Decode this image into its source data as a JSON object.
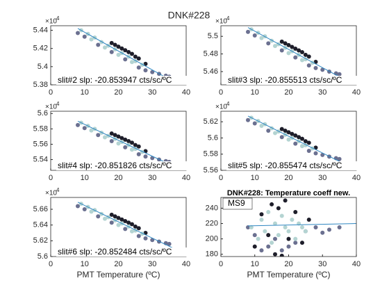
{
  "figure_title": "DNK#228",
  "chart_data": [
    {
      "type": "scatter",
      "annotation": "slit#2 slp: -20.853947 cts/sc/ºC",
      "xlim": [
        0,
        40
      ],
      "xticks": [
        0,
        10,
        20,
        30,
        40
      ],
      "ylim": [
        5.38,
        5.445
      ],
      "yticks": [
        5.38,
        5.4,
        5.42,
        5.44
      ],
      "y_multiplier_base": "×10",
      "y_multiplier_exp": "4",
      "series": [
        {
          "color": "#1e1e2a",
          "x": [
            18,
            20,
            22,
            24,
            26,
            28,
            25,
            23,
            21,
            19
          ],
          "y": [
            5.426,
            5.422,
            5.418,
            5.414,
            5.409,
            5.403,
            5.411,
            5.416,
            5.42,
            5.424
          ]
        },
        {
          "color": "#6b7090",
          "x": [
            8,
            10,
            14,
            18,
            22,
            26,
            28,
            30,
            32,
            34,
            35
          ],
          "y": [
            5.437,
            5.433,
            5.424,
            5.416,
            5.408,
            5.399,
            5.396,
            5.394,
            5.392,
            5.39,
            5.389
          ]
        },
        {
          "color": "#b4d4d2",
          "x": [
            9,
            11,
            13,
            15,
            17,
            19,
            21,
            23,
            25,
            27,
            12,
            16,
            20,
            24
          ],
          "y": [
            5.44,
            5.436,
            5.432,
            5.427,
            5.423,
            5.419,
            5.415,
            5.411,
            5.406,
            5.402,
            5.43,
            5.421,
            5.413,
            5.405
          ]
        }
      ],
      "fit": {
        "color": "#2e86c1",
        "x": [
          8,
          36
        ],
        "y": [
          5.442,
          5.384
        ]
      }
    },
    {
      "type": "scatter",
      "annotation": "slit#3 slp: -20.855513 cts/sc/ºC",
      "xlim": [
        0,
        40
      ],
      "xticks": [
        0,
        10,
        20,
        30,
        40
      ],
      "ylim": [
        5.445,
        5.512
      ],
      "yticks": [
        5.46,
        5.48,
        5.5
      ],
      "y_multiplier_base": "×10",
      "y_multiplier_exp": "4",
      "series": [
        {
          "color": "#1e1e2a",
          "x": [
            18,
            20,
            22,
            24,
            26,
            28,
            25,
            23,
            21,
            19
          ],
          "y": [
            5.494,
            5.49,
            5.486,
            5.482,
            5.477,
            5.471,
            5.479,
            5.484,
            5.488,
            5.492
          ]
        },
        {
          "color": "#6b7090",
          "x": [
            8,
            10,
            14,
            18,
            22,
            26,
            28,
            30,
            32,
            34,
            35
          ],
          "y": [
            5.505,
            5.501,
            5.492,
            5.484,
            5.476,
            5.467,
            5.464,
            5.462,
            5.46,
            5.458,
            5.457
          ]
        },
        {
          "color": "#b4d4d2",
          "x": [
            9,
            11,
            13,
            15,
            17,
            19,
            21,
            23,
            25,
            27,
            12,
            16,
            20,
            24
          ],
          "y": [
            5.508,
            5.504,
            5.5,
            5.495,
            5.491,
            5.487,
            5.483,
            5.479,
            5.474,
            5.47,
            5.498,
            5.489,
            5.481,
            5.473
          ]
        }
      ],
      "fit": {
        "color": "#2e86c1",
        "x": [
          8,
          36
        ],
        "y": [
          5.51,
          5.452
        ]
      }
    },
    {
      "type": "scatter",
      "annotation": "slit#4 slp: -20.851826 cts/sc/ºC",
      "xlim": [
        0,
        40
      ],
      "xticks": [
        0,
        10,
        20,
        30,
        40
      ],
      "ylim": [
        5.526,
        5.603
      ],
      "yticks": [
        5.54,
        5.56,
        5.58,
        5.6
      ],
      "y_multiplier_base": "×10",
      "y_multiplier_exp": "4",
      "series": [
        {
          "color": "#1e1e2a",
          "x": [
            18,
            20,
            22,
            24,
            26,
            28,
            25,
            23,
            21,
            19
          ],
          "y": [
            5.574,
            5.57,
            5.566,
            5.562,
            5.557,
            5.551,
            5.559,
            5.564,
            5.568,
            5.572
          ]
        },
        {
          "color": "#6b7090",
          "x": [
            8,
            10,
            14,
            18,
            22,
            26,
            28,
            30,
            32,
            34,
            35
          ],
          "y": [
            5.585,
            5.581,
            5.572,
            5.564,
            5.556,
            5.547,
            5.544,
            5.542,
            5.54,
            5.538,
            5.537
          ]
        },
        {
          "color": "#b4d4d2",
          "x": [
            9,
            11,
            13,
            15,
            17,
            19,
            21,
            23,
            25,
            27,
            12,
            16,
            20,
            24
          ],
          "y": [
            5.588,
            5.584,
            5.58,
            5.575,
            5.571,
            5.567,
            5.563,
            5.559,
            5.554,
            5.55,
            5.578,
            5.569,
            5.561,
            5.553
          ]
        }
      ],
      "fit": {
        "color": "#2e86c1",
        "x": [
          8,
          36
        ],
        "y": [
          5.59,
          5.532
        ]
      }
    },
    {
      "type": "scatter",
      "annotation": "slit#5 slp: -20.855474 cts/sc/ºC",
      "xlim": [
        0,
        40
      ],
      "xticks": [
        0,
        10,
        20,
        30,
        40
      ],
      "ylim": [
        5.56,
        5.633
      ],
      "yticks": [
        5.56,
        5.58,
        5.6,
        5.62
      ],
      "y_multiplier_base": "×10",
      "y_multiplier_exp": "4",
      "series": [
        {
          "color": "#1e1e2a",
          "x": [
            18,
            20,
            22,
            24,
            26,
            28,
            25,
            23,
            21,
            19
          ],
          "y": [
            5.611,
            5.607,
            5.603,
            5.599,
            5.594,
            5.588,
            5.596,
            5.601,
            5.605,
            5.609
          ]
        },
        {
          "color": "#6b7090",
          "x": [
            8,
            10,
            14,
            18,
            22,
            26,
            28,
            30,
            32,
            34,
            35
          ],
          "y": [
            5.622,
            5.618,
            5.609,
            5.601,
            5.593,
            5.584,
            5.581,
            5.579,
            5.577,
            5.575,
            5.574
          ]
        },
        {
          "color": "#b4d4d2",
          "x": [
            9,
            11,
            13,
            15,
            17,
            19,
            21,
            23,
            25,
            27,
            12,
            16,
            20,
            24
          ],
          "y": [
            5.625,
            5.621,
            5.617,
            5.612,
            5.608,
            5.604,
            5.6,
            5.596,
            5.591,
            5.587,
            5.615,
            5.606,
            5.598,
            5.59
          ]
        }
      ],
      "fit": {
        "color": "#2e86c1",
        "x": [
          8,
          36
        ],
        "y": [
          5.627,
          5.569
        ]
      }
    },
    {
      "type": "scatter",
      "annotation": "slit#6 slp: -20.852484 cts/sc/ºC",
      "x_label": "PMT Temperature (ºC)",
      "xlim": [
        0,
        40
      ],
      "xticks": [
        0,
        10,
        20,
        30,
        40
      ],
      "ylim": [
        5.6,
        5.675
      ],
      "yticks": [
        5.6,
        5.62,
        5.64,
        5.66
      ],
      "y_multiplier_base": "×10",
      "y_multiplier_exp": "4",
      "series": [
        {
          "color": "#1e1e2a",
          "x": [
            18,
            20,
            22,
            24,
            26,
            28,
            25,
            23,
            21,
            19
          ],
          "y": [
            5.653,
            5.649,
            5.645,
            5.641,
            5.636,
            5.63,
            5.638,
            5.643,
            5.647,
            5.651
          ]
        },
        {
          "color": "#6b7090",
          "x": [
            8,
            10,
            14,
            18,
            22,
            26,
            28,
            30,
            32,
            34,
            35
          ],
          "y": [
            5.664,
            5.66,
            5.651,
            5.643,
            5.635,
            5.626,
            5.623,
            5.621,
            5.619,
            5.617,
            5.616
          ]
        },
        {
          "color": "#b4d4d2",
          "x": [
            9,
            11,
            13,
            15,
            17,
            19,
            21,
            23,
            25,
            27,
            12,
            16,
            20,
            24
          ],
          "y": [
            5.667,
            5.663,
            5.659,
            5.654,
            5.65,
            5.646,
            5.642,
            5.638,
            5.633,
            5.629,
            5.657,
            5.648,
            5.64,
            5.632
          ]
        }
      ],
      "fit": {
        "color": "#2e86c1",
        "x": [
          8,
          36
        ],
        "y": [
          5.669,
          5.611
        ]
      }
    },
    {
      "type": "scatter",
      "title": "DNK#228: Temperature coeff new.",
      "x_label": "PMT Temperature (ºC)",
      "xlim": [
        0,
        40
      ],
      "xticks": [
        0,
        10,
        20,
        30,
        40
      ],
      "ylim": [
        177,
        254
      ],
      "yticks": [
        180,
        200,
        220,
        240
      ],
      "series": [
        {
          "color": "#6b7090",
          "x": [
            8,
            10,
            12,
            14,
            16,
            18,
            20,
            22,
            25,
            28,
            30,
            32,
            35
          ],
          "y": [
            215,
            205,
            185,
            190,
            200,
            185,
            190,
            195,
            210,
            215,
            208,
            212,
            215
          ]
        },
        {
          "color": "#1e1e2a",
          "x": [
            10,
            12,
            14,
            15,
            16,
            17,
            18,
            19,
            20,
            22,
            24,
            26
          ],
          "y": [
            190,
            232,
            205,
            245,
            180,
            240,
            178,
            250,
            200,
            235,
            195,
            225
          ]
        },
        {
          "color": "#b4d4d2",
          "x": [
            9,
            11,
            12,
            13,
            14,
            15,
            16,
            17,
            18,
            19,
            20,
            21,
            22,
            23,
            24,
            25
          ],
          "y": [
            215,
            200,
            225,
            210,
            235,
            195,
            220,
            205,
            230,
            215,
            210,
            225,
            200,
            220,
            215,
            210
          ]
        }
      ],
      "fit": {
        "name": "MS9",
        "color": "#2e86c1",
        "x": [
          8,
          40
        ],
        "y": [
          217,
          220
        ]
      }
    }
  ]
}
